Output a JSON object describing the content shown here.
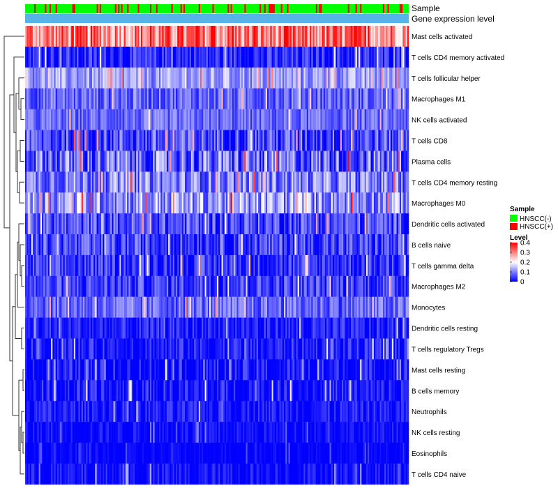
{
  "chart_data": {
    "type": "heatmap",
    "annotation_labels": {
      "sample": "Sample",
      "expression": "Gene expression level"
    },
    "legend": {
      "sample_title": "Sample",
      "sample_items": [
        {
          "label": "HNSCC(-)",
          "color": "#00ff00"
        },
        {
          "label": "HNSCC(+)",
          "color": "#ff0000"
        }
      ],
      "level_title": "Level",
      "level_ticks": [
        "0.4",
        "0.3",
        "0.2",
        "0.1",
        "0"
      ],
      "level_range": [
        0,
        0.4
      ],
      "colors": {
        "low": "#0000ff",
        "mid": "#ffffff",
        "high": "#ff0000"
      },
      "placement": "right"
    },
    "expression_bar_color": "#56b4e9",
    "n_samples": 252,
    "rows": [
      {
        "name": "Mast cells activated",
        "mean": 0.3,
        "spread": 0.1
      },
      {
        "name": "T cells CD4 memory activated",
        "mean": 0.03,
        "spread": 0.06
      },
      {
        "name": "T cells follicular helper",
        "mean": 0.12,
        "spread": 0.06
      },
      {
        "name": "Macrophages M1",
        "mean": 0.08,
        "spread": 0.06
      },
      {
        "name": "NK cells activated",
        "mean": 0.08,
        "spread": 0.05
      },
      {
        "name": "T cells CD8",
        "mean": 0.06,
        "spread": 0.08
      },
      {
        "name": "Plasma cells",
        "mean": 0.08,
        "spread": 0.1
      },
      {
        "name": "T cells CD4 memory resting",
        "mean": 0.1,
        "spread": 0.08
      },
      {
        "name": "Macrophages M0",
        "mean": 0.12,
        "spread": 0.09
      },
      {
        "name": "Dendritic cells activated",
        "mean": 0.06,
        "spread": 0.07
      },
      {
        "name": "B cells naive",
        "mean": 0.05,
        "spread": 0.07
      },
      {
        "name": "T cells gamma delta",
        "mean": 0.04,
        "spread": 0.06
      },
      {
        "name": "Macrophages M2",
        "mean": 0.05,
        "spread": 0.06
      },
      {
        "name": "Monocytes",
        "mean": 0.08,
        "spread": 0.06
      },
      {
        "name": "Dendritic cells resting",
        "mean": 0.02,
        "spread": 0.05
      },
      {
        "name": "T cells regulatory  Tregs",
        "mean": 0.02,
        "spread": 0.05
      },
      {
        "name": "Mast cells resting",
        "mean": 0.01,
        "spread": 0.06
      },
      {
        "name": "B cells memory",
        "mean": 0.01,
        "spread": 0.06
      },
      {
        "name": "Neutrophils",
        "mean": 0.02,
        "spread": 0.04
      },
      {
        "name": "NK cells resting",
        "mean": 0.01,
        "spread": 0.03
      },
      {
        "name": "Eosinophils",
        "mean": 0.0,
        "spread": 0.02
      },
      {
        "name": "T cells CD4 naive",
        "mean": 0.01,
        "spread": 0.04
      }
    ]
  }
}
